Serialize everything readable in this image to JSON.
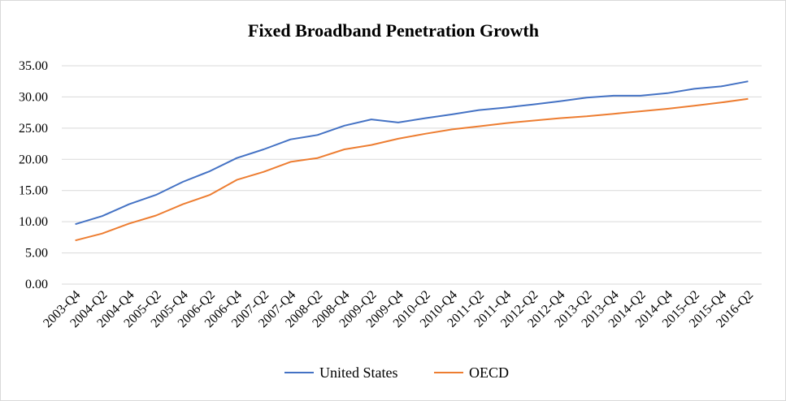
{
  "chart_data": {
    "type": "line",
    "title": "Fixed Broadband Penetration Growth",
    "xlabel": "",
    "ylabel": "",
    "ylim": [
      0,
      35
    ],
    "yticks": [
      "0.00",
      "5.00",
      "10.00",
      "15.00",
      "20.00",
      "25.00",
      "30.00",
      "35.00"
    ],
    "grid": true,
    "legend_position": "bottom",
    "categories": [
      "2003-Q4",
      "2004-Q2",
      "2004-Q4",
      "2005-Q2",
      "2005-Q4",
      "2006-Q2",
      "2006-Q4",
      "2007-Q2",
      "2007-Q4",
      "2008-Q2",
      "2008-Q4",
      "2009-Q2",
      "2009-Q4",
      "2010-Q2",
      "2010-Q4",
      "2011-Q2",
      "2011-Q4",
      "2012-Q2",
      "2012-Q4",
      "2013-Q2",
      "2013-Q4",
      "2014-Q2",
      "2014-Q4",
      "2015-Q2",
      "2015-Q4",
      "2016-Q2"
    ],
    "series": [
      {
        "name": "United States",
        "color": "#4472C4",
        "values": [
          9.6,
          10.9,
          12.8,
          14.3,
          16.4,
          18.1,
          20.2,
          21.6,
          23.2,
          23.9,
          25.4,
          26.4,
          25.9,
          26.6,
          27.2,
          27.9,
          28.3,
          28.8,
          29.3,
          29.9,
          30.2,
          30.2,
          30.6,
          31.3,
          31.7,
          32.5
        ]
      },
      {
        "name": "OECD",
        "color": "#ED7D31",
        "values": [
          7.0,
          8.1,
          9.7,
          11.0,
          12.8,
          14.3,
          16.7,
          18.0,
          19.6,
          20.2,
          21.6,
          22.3,
          23.3,
          24.1,
          24.8,
          25.3,
          25.8,
          26.2,
          26.6,
          26.9,
          27.3,
          27.7,
          28.1,
          28.6,
          29.1,
          29.7
        ]
      }
    ]
  }
}
